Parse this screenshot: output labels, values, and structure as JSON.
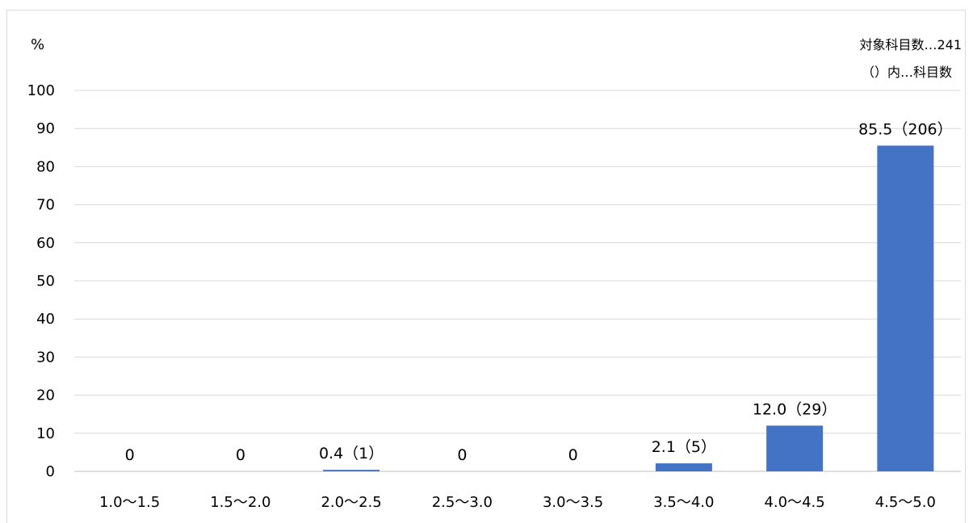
{
  "chart_data": {
    "type": "bar",
    "ylabel": "%",
    "ylim": [
      0,
      100
    ],
    "yticks": [
      "0",
      "10",
      "20",
      "30",
      "40",
      "50",
      "60",
      "70",
      "80",
      "90",
      "100"
    ],
    "categories": [
      "1.0〜1.5",
      "1.5〜2.0",
      "2.0〜2.5",
      "2.5〜3.0",
      "3.0〜3.5",
      "3.5〜4.0",
      "4.0〜4.5",
      "4.5〜5.0"
    ],
    "values": [
      0,
      0,
      0.4,
      0,
      0,
      2.1,
      12.0,
      85.5
    ],
    "data_labels": [
      "0",
      "0",
      "0.4（1）",
      "0",
      "0",
      "2.1（5）",
      "12.0（29）",
      "85.5（206）"
    ],
    "notes": [
      "対象科目数…241",
      "（）内…科目数"
    ],
    "bar_color": "#4472c4",
    "grid": true
  }
}
